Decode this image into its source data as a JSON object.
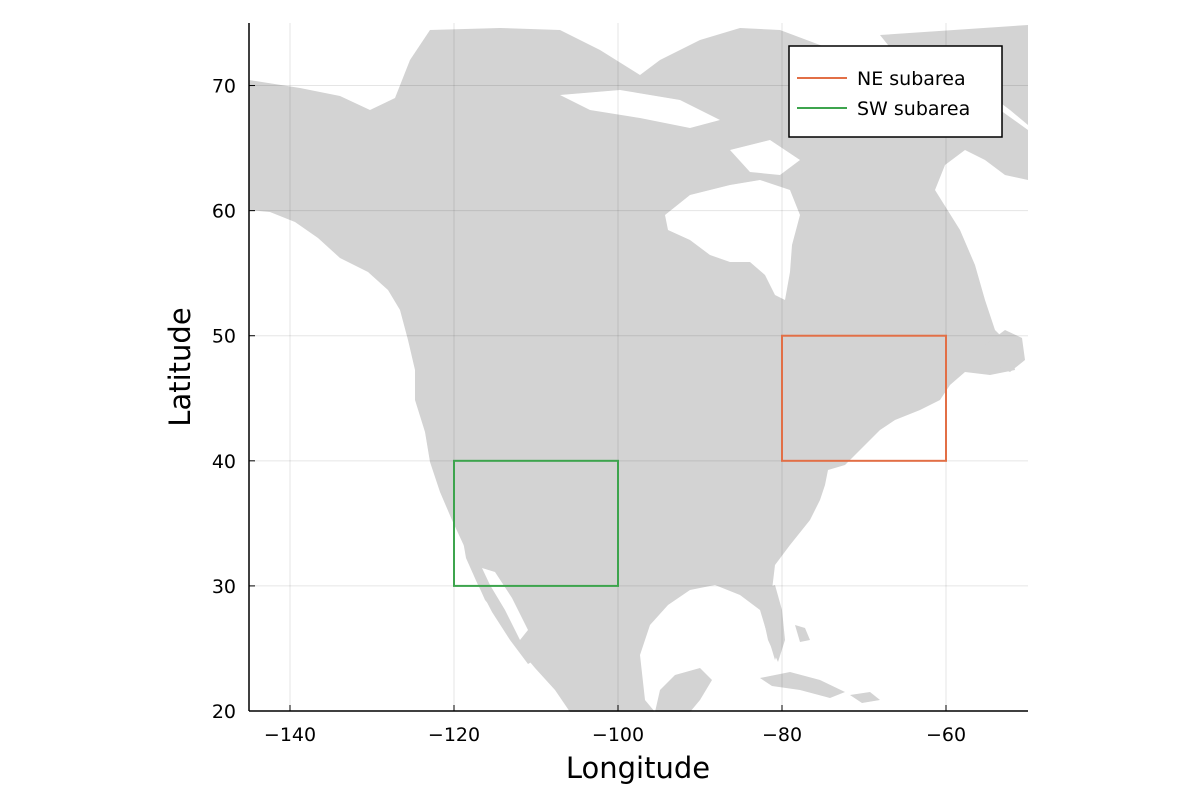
{
  "chart_data": {
    "type": "map",
    "xlabel": "Longitude",
    "ylabel": "Latitude",
    "xlim": [
      -145,
      -50
    ],
    "ylim": [
      20,
      75
    ],
    "xticks": [
      -140,
      -120,
      -100,
      -80,
      -60
    ],
    "yticks": [
      20,
      30,
      40,
      50,
      60,
      70
    ],
    "xtick_labels": [
      "−140",
      "−120",
      "−100",
      "−80",
      "−60"
    ],
    "ytick_labels": [
      "20",
      "30",
      "40",
      "50",
      "60",
      "70"
    ],
    "grid": true,
    "legend_position": "top-right",
    "background_map": "North America land mask",
    "land_color": "#d3d3d3",
    "series": [
      {
        "name": "NE subarea",
        "color": "#e26f46",
        "lon": [
          -80,
          -60
        ],
        "lat": [
          40,
          50
        ]
      },
      {
        "name": "SW subarea",
        "color": "#3da44d",
        "lon": [
          -120,
          -100
        ],
        "lat": [
          30,
          40
        ]
      }
    ]
  }
}
